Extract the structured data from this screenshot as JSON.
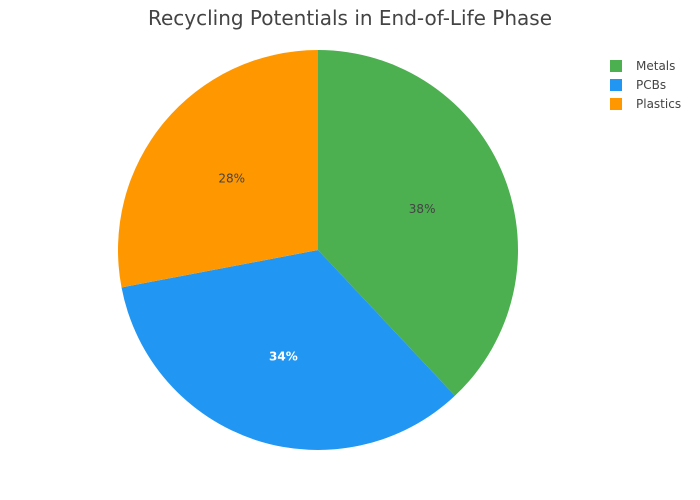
{
  "chart_data": {
    "type": "pie",
    "title": "Recycling Potentials in End-of-Life Phase",
    "categories": [
      "Metals",
      "PCBs",
      "Plastics"
    ],
    "values": [
      38,
      34,
      28
    ],
    "labels": [
      "38%",
      "34%",
      "28%"
    ],
    "colors": [
      "#4caf50",
      "#2196f3",
      "#ff9800"
    ],
    "label_colors": [
      "#444444",
      "#ffffff",
      "#444444"
    ],
    "legend_placement": "top-right",
    "start_angle_deg": 0,
    "direction": "clockwise"
  }
}
